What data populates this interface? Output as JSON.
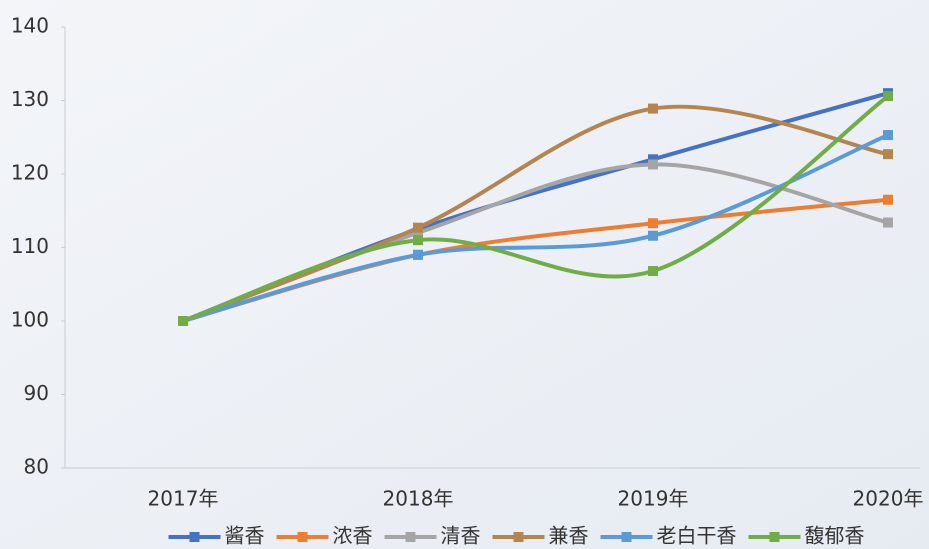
{
  "chart_data": {
    "type": "line",
    "smooth": true,
    "categories": [
      "2017年",
      "2018年",
      "2019年",
      "2020年"
    ],
    "series": [
      {
        "name": "酱香",
        "color": "#4472c4",
        "values": [
          100,
          112.5,
          122,
          131
        ]
      },
      {
        "name": "浓香",
        "color": "#ed7d31",
        "values": [
          100,
          109,
          113.3,
          116.5
        ]
      },
      {
        "name": "清香",
        "color": "#a5a5a5",
        "values": [
          100,
          112,
          121.3,
          113.4
        ]
      },
      {
        "name": "兼香",
        "color": "#b5854f",
        "values": [
          100,
          112.7,
          128.9,
          122.7
        ]
      },
      {
        "name": "老白干香",
        "color": "#5b9bd5",
        "values": [
          100,
          109,
          111.6,
          125.3
        ]
      },
      {
        "name": "馥郁香",
        "color": "#70ad47",
        "values": [
          100,
          111,
          106.8,
          130.6
        ]
      }
    ],
    "ylim": [
      80,
      140
    ],
    "yticks": [
      80,
      90,
      100,
      110,
      120,
      130,
      140
    ],
    "legend": "bottom"
  }
}
